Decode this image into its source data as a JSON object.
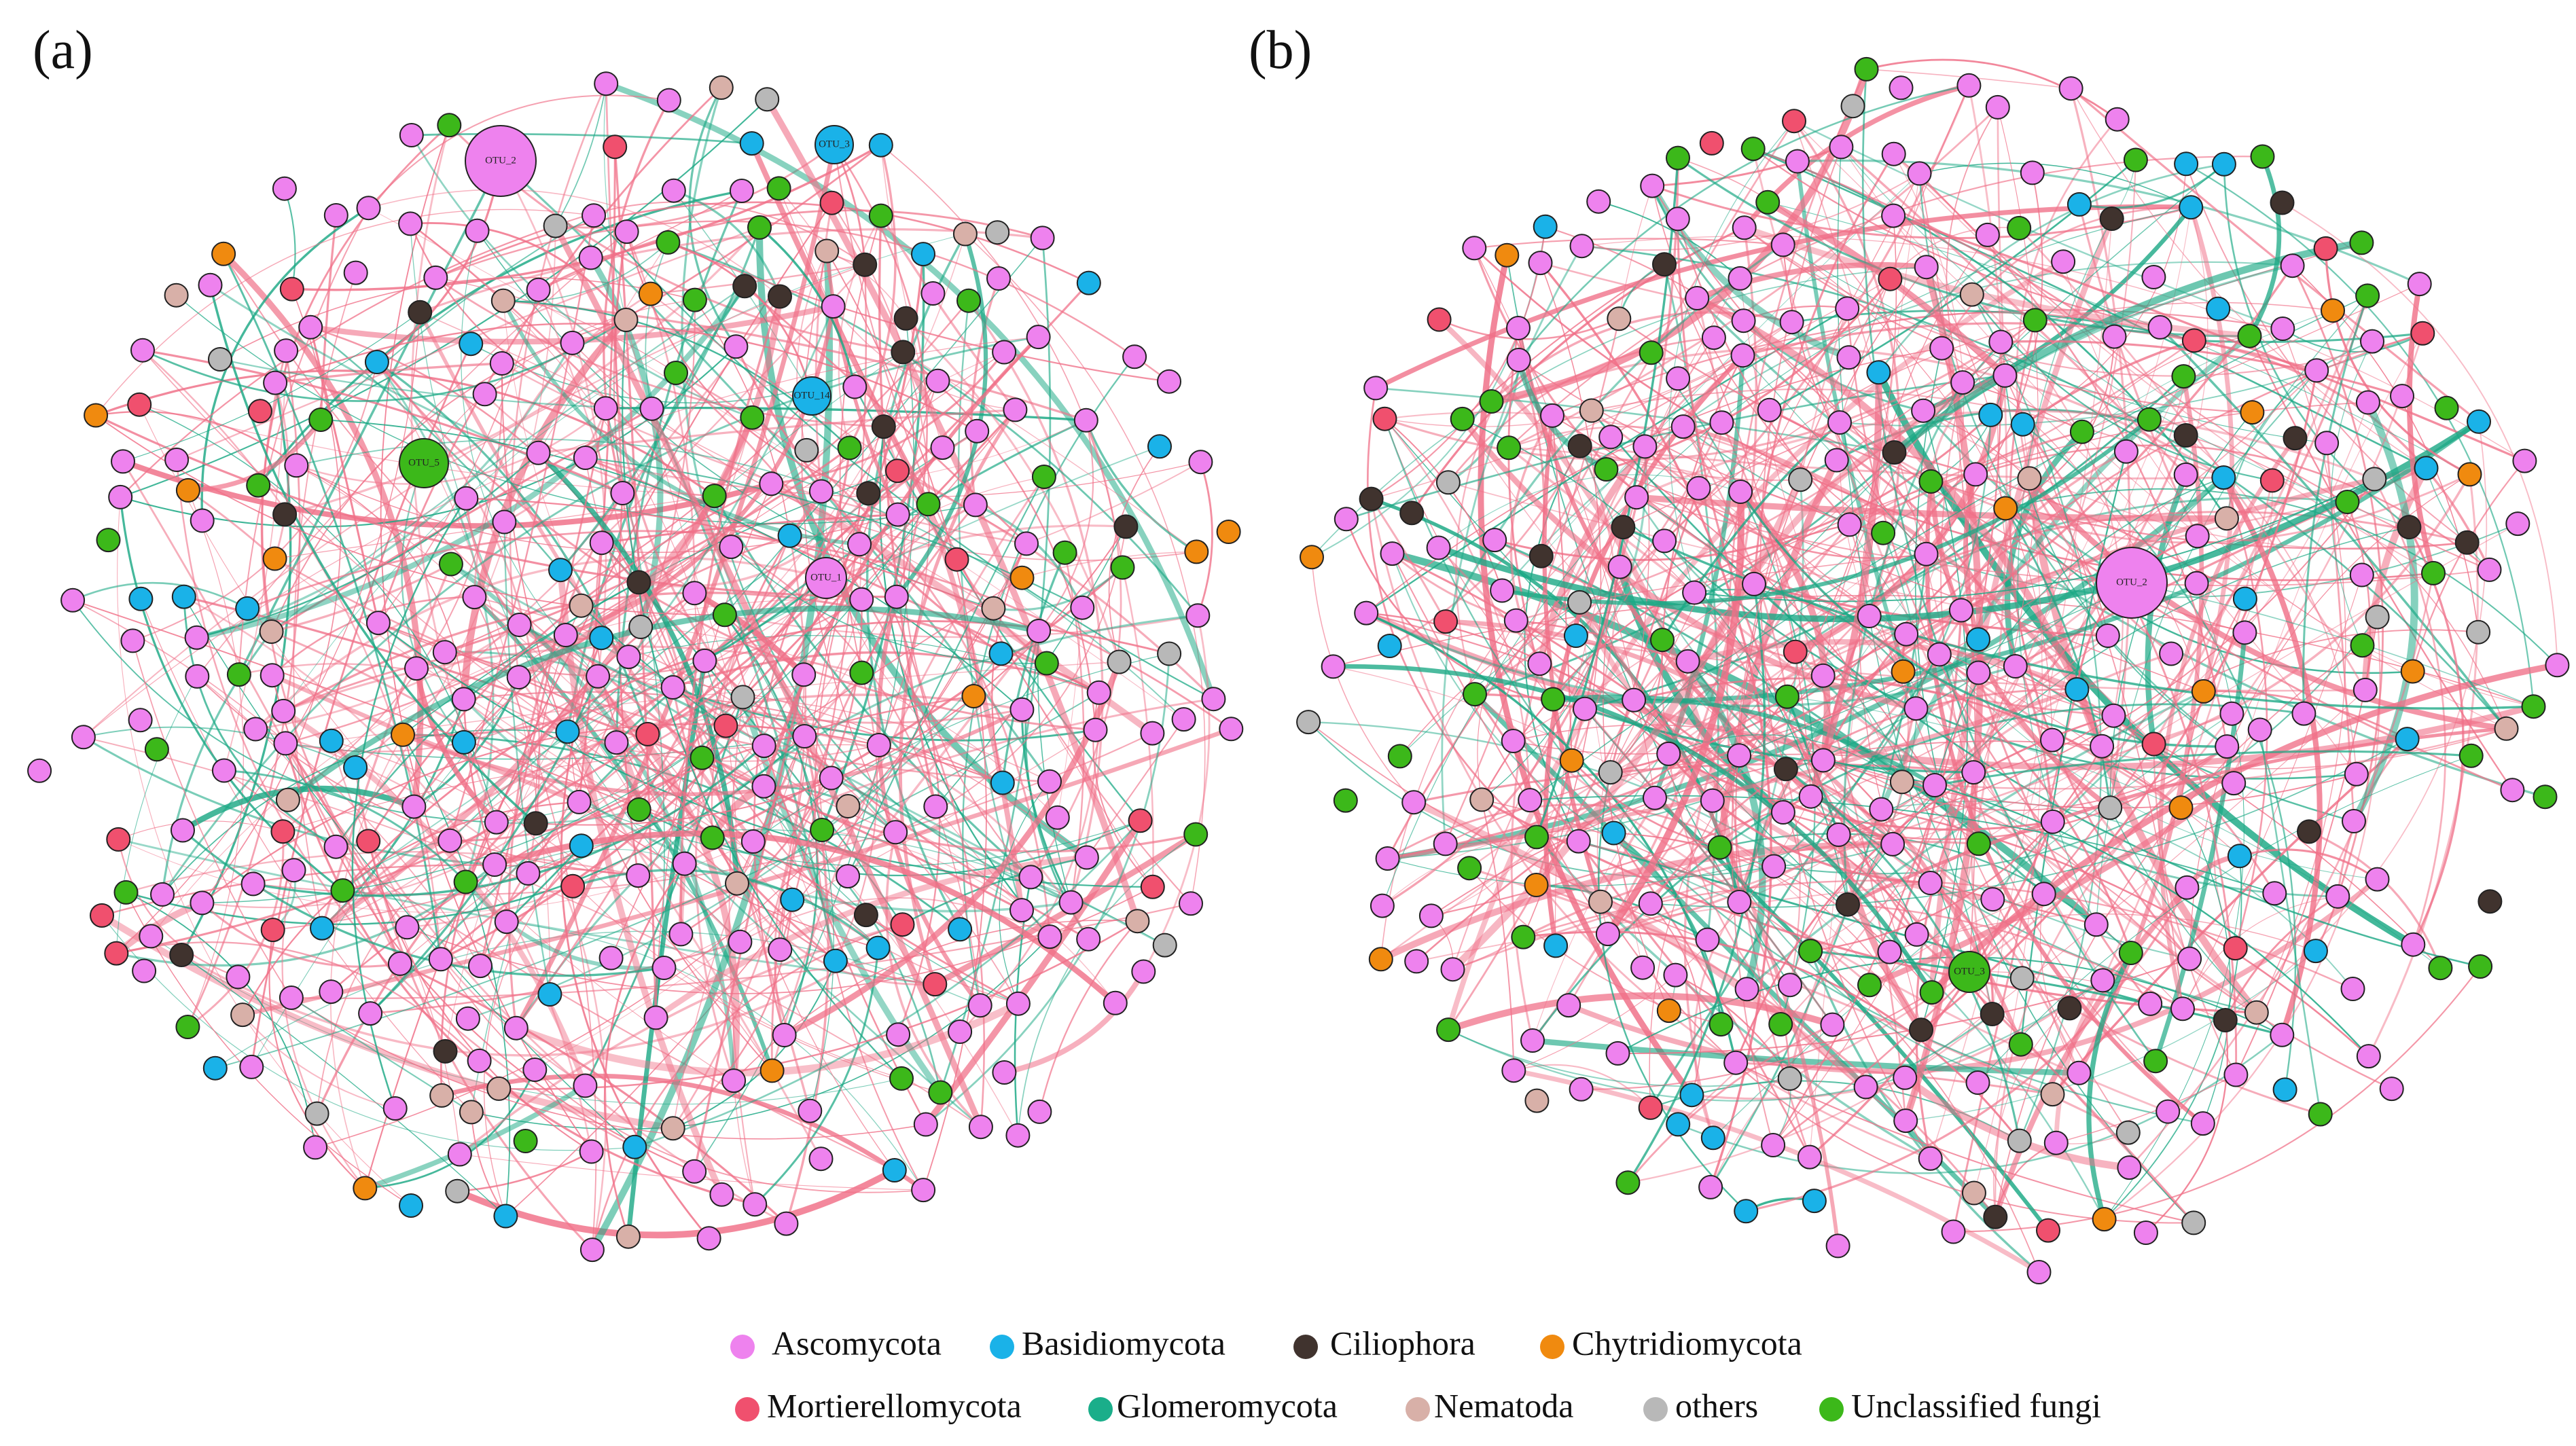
{
  "panels": [
    {
      "label": "(a)",
      "nodes": [
        {
          "label": "OTU_2",
          "color": "#ee82ee"
        },
        {
          "label": "OTU_5",
          "color": "#3cb81a"
        },
        {
          "label": "OTU_1",
          "color": "#ee82ee"
        },
        {
          "label": "OTU_14",
          "color": "#1ab2e8"
        },
        {
          "label": "OTU_3",
          "color": "#1ab2e8"
        }
      ]
    },
    {
      "label": "(b)",
      "nodes": [
        {
          "label": "OTU_2",
          "color": "#ee82ee"
        },
        {
          "label": "OTU_3",
          "color": "#3cb81a"
        }
      ]
    }
  ],
  "legend": [
    {
      "label": "Ascomycota",
      "color": "#ee82ee"
    },
    {
      "label": "Basidiomycota",
      "color": "#1ab2e8"
    },
    {
      "label": "Ciliophora",
      "color": "#40332e"
    },
    {
      "label": "Chytridiomycota",
      "color": "#f08a0f"
    },
    {
      "label": "Mortierellomycota",
      "color": "#f0506e"
    },
    {
      "label": "Glomeromycota",
      "color": "#1aae8a"
    },
    {
      "label": "Nematoda",
      "color": "#d8b0a8"
    },
    {
      "label": "others",
      "color": "#b8b8b8"
    },
    {
      "label": "Unclassified fungi",
      "color": "#3cb81a"
    }
  ]
}
